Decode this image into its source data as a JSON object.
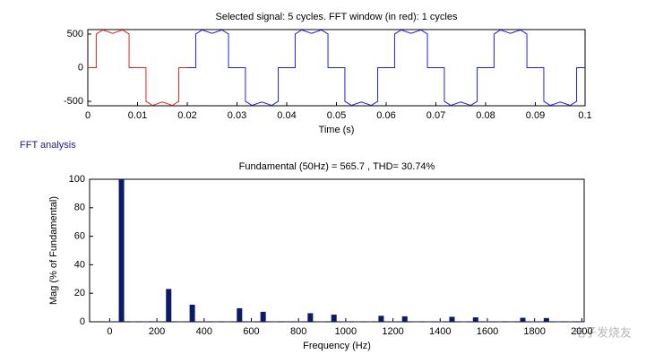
{
  "section_label": "FFT analysis",
  "watermark": "电子发烧友",
  "chart_data": [
    {
      "type": "line",
      "title": "Selected signal: 5 cycles. FFT window (in red): 1 cycles",
      "x_label": "Time (s)",
      "xlim": [
        0,
        0.1
      ],
      "xticks": [
        0,
        0.01,
        0.02,
        0.03,
        0.04,
        0.05,
        0.06,
        0.07,
        0.08,
        0.09,
        0.1
      ],
      "ylim": [
        -566,
        566
      ],
      "yticks": [
        -500,
        0,
        500
      ],
      "series": [
        {
          "color": "#e8231f",
          "x": [
            0,
            0.0017,
            0.0017,
            0.003,
            0.005,
            0.007,
            0.0083,
            0.0083,
            0.0117,
            0.0117,
            0.013,
            0.015,
            0.017,
            0.0183,
            0.0183,
            0.02
          ],
          "values": [
            0,
            0,
            500,
            560,
            510,
            560,
            500,
            0,
            0,
            -500,
            -560,
            -510,
            -560,
            -500,
            0,
            0
          ]
        },
        {
          "color": "#1f1fe0",
          "x": [
            0.02,
            0.0217,
            0.0217,
            0.023,
            0.025,
            0.027,
            0.0283,
            0.0283,
            0.0317,
            0.0317,
            0.033,
            0.035,
            0.037,
            0.0383,
            0.0383,
            0.04,
            0.0417,
            0.0417,
            0.043,
            0.045,
            0.047,
            0.0483,
            0.0483,
            0.0517,
            0.0517,
            0.053,
            0.055,
            0.057,
            0.0583,
            0.0583,
            0.06,
            0.0617,
            0.0617,
            0.063,
            0.065,
            0.067,
            0.0683,
            0.0683,
            0.0717,
            0.0717,
            0.073,
            0.075,
            0.077,
            0.0783,
            0.0783,
            0.08,
            0.0817,
            0.0817,
            0.083,
            0.085,
            0.087,
            0.0883,
            0.0883,
            0.0917,
            0.0917,
            0.093,
            0.095,
            0.097,
            0.0983,
            0.0983,
            0.1
          ],
          "values": [
            0,
            0,
            500,
            560,
            510,
            560,
            500,
            0,
            0,
            -500,
            -560,
            -510,
            -560,
            -500,
            0,
            0,
            0,
            500,
            560,
            510,
            560,
            500,
            0,
            0,
            -500,
            -560,
            -510,
            -560,
            -500,
            0,
            0,
            0,
            500,
            560,
            510,
            560,
            500,
            0,
            0,
            -500,
            -560,
            -510,
            -560,
            -500,
            0,
            0,
            0,
            500,
            560,
            510,
            560,
            500,
            0,
            0,
            -500,
            -560,
            -510,
            -560,
            -500,
            0,
            0
          ]
        }
      ]
    },
    {
      "type": "bar",
      "title": "Fundamental (50Hz) = 565.7 , THD= 30.74%",
      "x_label": "Frequency (Hz)",
      "y_label": "Mag (% of Fundamental)",
      "color": "#0b1a6b",
      "xlim": [
        -85,
        2010
      ],
      "xticks": [
        0,
        200,
        400,
        600,
        800,
        1000,
        1200,
        1400,
        1600,
        1800,
        2000
      ],
      "ylim": [
        0,
        100
      ],
      "yticks": [
        0,
        20,
        40,
        60,
        80,
        100
      ],
      "x": [
        0,
        50,
        100,
        150,
        200,
        250,
        300,
        350,
        400,
        450,
        500,
        550,
        600,
        650,
        700,
        750,
        800,
        850,
        900,
        950,
        1000,
        1050,
        1100,
        1150,
        1200,
        1250,
        1300,
        1350,
        1400,
        1450,
        1500,
        1550,
        1600,
        1650,
        1700,
        1750,
        1800,
        1850,
        1900,
        1950,
        2000
      ],
      "values": [
        0.3,
        100,
        0.3,
        0.3,
        0.3,
        23,
        0.3,
        12,
        0.3,
        0.3,
        0.3,
        9.5,
        0.3,
        7,
        0.3,
        0.3,
        0.3,
        6,
        0.3,
        5,
        0.3,
        0.3,
        0.3,
        4.2,
        0.3,
        3.8,
        0.3,
        0.3,
        0.3,
        3.5,
        0.3,
        3.1,
        0.3,
        0.3,
        0.3,
        2.8,
        0.3,
        2.6,
        0.3,
        0.3,
        0.3
      ]
    }
  ]
}
